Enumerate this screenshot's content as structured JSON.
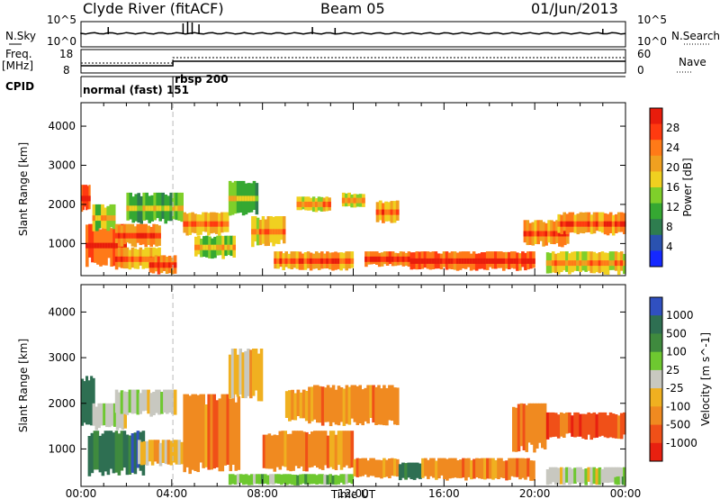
{
  "header": {
    "station": "Clyde River (fitACF)",
    "beam": "Beam 05",
    "date": "01/Jun/2013"
  },
  "strip_labels": {
    "nsky": "N.Sky",
    "nsky_ticks": [
      "10^5",
      "10^0"
    ],
    "nsearch": "N.Search",
    "nsearch_ticks": [
      "10^5",
      "10^0"
    ],
    "freq_line1": "Freq.",
    "freq_line2": "[MHz]",
    "freq_ticks": [
      "18",
      "8"
    ],
    "nave": "Nave",
    "nave_ticks": [
      "60",
      "0"
    ],
    "cpid": "CPID",
    "cpid_modes": [
      {
        "name": "normal (fast) 151",
        "start_h": 0,
        "end_h": 4.05
      },
      {
        "name": "rbsp 200",
        "start_h": 4.05,
        "end_h": 24
      }
    ]
  },
  "colors": {
    "scatter_power": [
      "#1428ff",
      "#2a52b0",
      "#2e7d4f",
      "#35a832",
      "#7fcf2a",
      "#f0d020",
      "#f0a020",
      "#ff7a18",
      "#ff3a10",
      "#e81c0c"
    ],
    "scatter_velocity": [
      "#3050c0",
      "#2e6f52",
      "#3f8a3e",
      "#6ec830",
      "#c8c8c0",
      "#f0b020",
      "#f08a20",
      "#f05018",
      "#e82010"
    ]
  },
  "chart_data": [
    {
      "type": "heatmap",
      "title": "Power",
      "xlabel": "",
      "ylabel": "Slant Range [km]",
      "xlim": [
        0,
        24
      ],
      "ylim": [
        180,
        4600
      ],
      "x_ticks": [],
      "y_ticks": [
        1000,
        2000,
        3000,
        4000
      ],
      "colorbar": {
        "label": "Power [dB]",
        "min": 0,
        "max": 32,
        "ticks": [
          4,
          8,
          12,
          16,
          20,
          24,
          28
        ]
      },
      "regions_description": "x in hours UT, y in km, value in dB",
      "regions": [
        {
          "x": [
            0.0,
            0.4
          ],
          "y": [
            1800,
            2500
          ],
          "v": 28
        },
        {
          "x": [
            0.2,
            2.0
          ],
          "y": [
            400,
            1500
          ],
          "v": 26
        },
        {
          "x": [
            0.5,
            1.5
          ],
          "y": [
            1300,
            2000
          ],
          "v": 14
        },
        {
          "x": [
            1.5,
            3.5
          ],
          "y": [
            300,
            900
          ],
          "v": 20
        },
        {
          "x": [
            1.5,
            3.5
          ],
          "y": [
            900,
            1500
          ],
          "v": 22
        },
        {
          "x": [
            2.0,
            4.5
          ],
          "y": [
            1500,
            2300
          ],
          "v": 12
        },
        {
          "x": [
            3.0,
            4.2
          ],
          "y": [
            200,
            700
          ],
          "v": 24
        },
        {
          "x": [
            4.5,
            6.5
          ],
          "y": [
            1200,
            1800
          ],
          "v": 20
        },
        {
          "x": [
            5.0,
            6.8
          ],
          "y": [
            600,
            1200
          ],
          "v": 14
        },
        {
          "x": [
            6.5,
            7.8
          ],
          "y": [
            1700,
            2600
          ],
          "v": 12
        },
        {
          "x": [
            7.5,
            9.0
          ],
          "y": [
            900,
            1700
          ],
          "v": 18
        },
        {
          "x": [
            8.5,
            12.0
          ],
          "y": [
            300,
            800
          ],
          "v": 22
        },
        {
          "x": [
            9.5,
            11.0
          ],
          "y": [
            1800,
            2200
          ],
          "v": 18
        },
        {
          "x": [
            11.5,
            12.5
          ],
          "y": [
            1900,
            2300
          ],
          "v": 16
        },
        {
          "x": [
            12.5,
            14.5
          ],
          "y": [
            400,
            800
          ],
          "v": 24
        },
        {
          "x": [
            13.0,
            14.0
          ],
          "y": [
            1500,
            2100
          ],
          "v": 20
        },
        {
          "x": [
            14.5,
            20.0
          ],
          "y": [
            300,
            800
          ],
          "v": 26
        },
        {
          "x": [
            19.5,
            21.5
          ],
          "y": [
            900,
            1600
          ],
          "v": 22
        },
        {
          "x": [
            21.0,
            24.0
          ],
          "y": [
            1200,
            1800
          ],
          "v": 22
        },
        {
          "x": [
            20.5,
            24.0
          ],
          "y": [
            200,
            800
          ],
          "v": 18
        }
      ]
    },
    {
      "type": "heatmap",
      "title": "Velocity",
      "xlabel": "Time UT",
      "ylabel": "Slant Range [km]",
      "xlim": [
        0,
        24
      ],
      "ylim": [
        180,
        4600
      ],
      "x_ticks": [
        "00:00",
        "04:00",
        "08:00",
        "12:00",
        "16:00",
        "20:00",
        "00:00"
      ],
      "y_ticks": [
        1000,
        2000,
        3000,
        4000
      ],
      "colorbar": {
        "label": "Velocity [m s^-1]",
        "ticks": [
          "1000",
          "500",
          "100",
          "25",
          "-25",
          "-100",
          "-500",
          "-1000"
        ]
      },
      "regions_description": "x in hours UT, y in km, value index in velocity color scale",
      "regions": [
        {
          "x": [
            0.0,
            0.6
          ],
          "y": [
            1500,
            2600
          ],
          "v": 1
        },
        {
          "x": [
            0.3,
            2.8
          ],
          "y": [
            400,
            1400
          ],
          "v": 1
        },
        {
          "x": [
            0.5,
            2.0
          ],
          "y": [
            1400,
            2000
          ],
          "v": 4
        },
        {
          "x": [
            1.5,
            4.2
          ],
          "y": [
            1700,
            2300
          ],
          "v": 4
        },
        {
          "x": [
            2.5,
            4.5
          ],
          "y": [
            600,
            1200
          ],
          "v": 5
        },
        {
          "x": [
            4.5,
            7.0
          ],
          "y": [
            400,
            2200
          ],
          "v": 6
        },
        {
          "x": [
            6.5,
            8.0
          ],
          "y": [
            2000,
            3200
          ],
          "v": 5
        },
        {
          "x": [
            8.0,
            12.0
          ],
          "y": [
            500,
            1400
          ],
          "v": 6
        },
        {
          "x": [
            9.0,
            10.0
          ],
          "y": [
            1600,
            2300
          ],
          "v": 5
        },
        {
          "x": [
            10.0,
            14.0
          ],
          "y": [
            1500,
            2400
          ],
          "v": 6
        },
        {
          "x": [
            6.5,
            12.0
          ],
          "y": [
            200,
            450
          ],
          "v": 3
        },
        {
          "x": [
            12.0,
            14.0
          ],
          "y": [
            350,
            800
          ],
          "v": 6
        },
        {
          "x": [
            14.0,
            15.0
          ],
          "y": [
            300,
            700
          ],
          "v": 1
        },
        {
          "x": [
            15.0,
            20.0
          ],
          "y": [
            300,
            800
          ],
          "v": 6
        },
        {
          "x": [
            19.0,
            20.5
          ],
          "y": [
            900,
            2000
          ],
          "v": 6
        },
        {
          "x": [
            20.5,
            24.0
          ],
          "y": [
            1200,
            1800
          ],
          "v": 7
        },
        {
          "x": [
            20.5,
            24.0
          ],
          "y": [
            200,
            600
          ],
          "v": 4
        },
        {
          "x": [
            23.5,
            24.0
          ],
          "y": [
            200,
            400
          ],
          "v": 3
        }
      ]
    }
  ]
}
